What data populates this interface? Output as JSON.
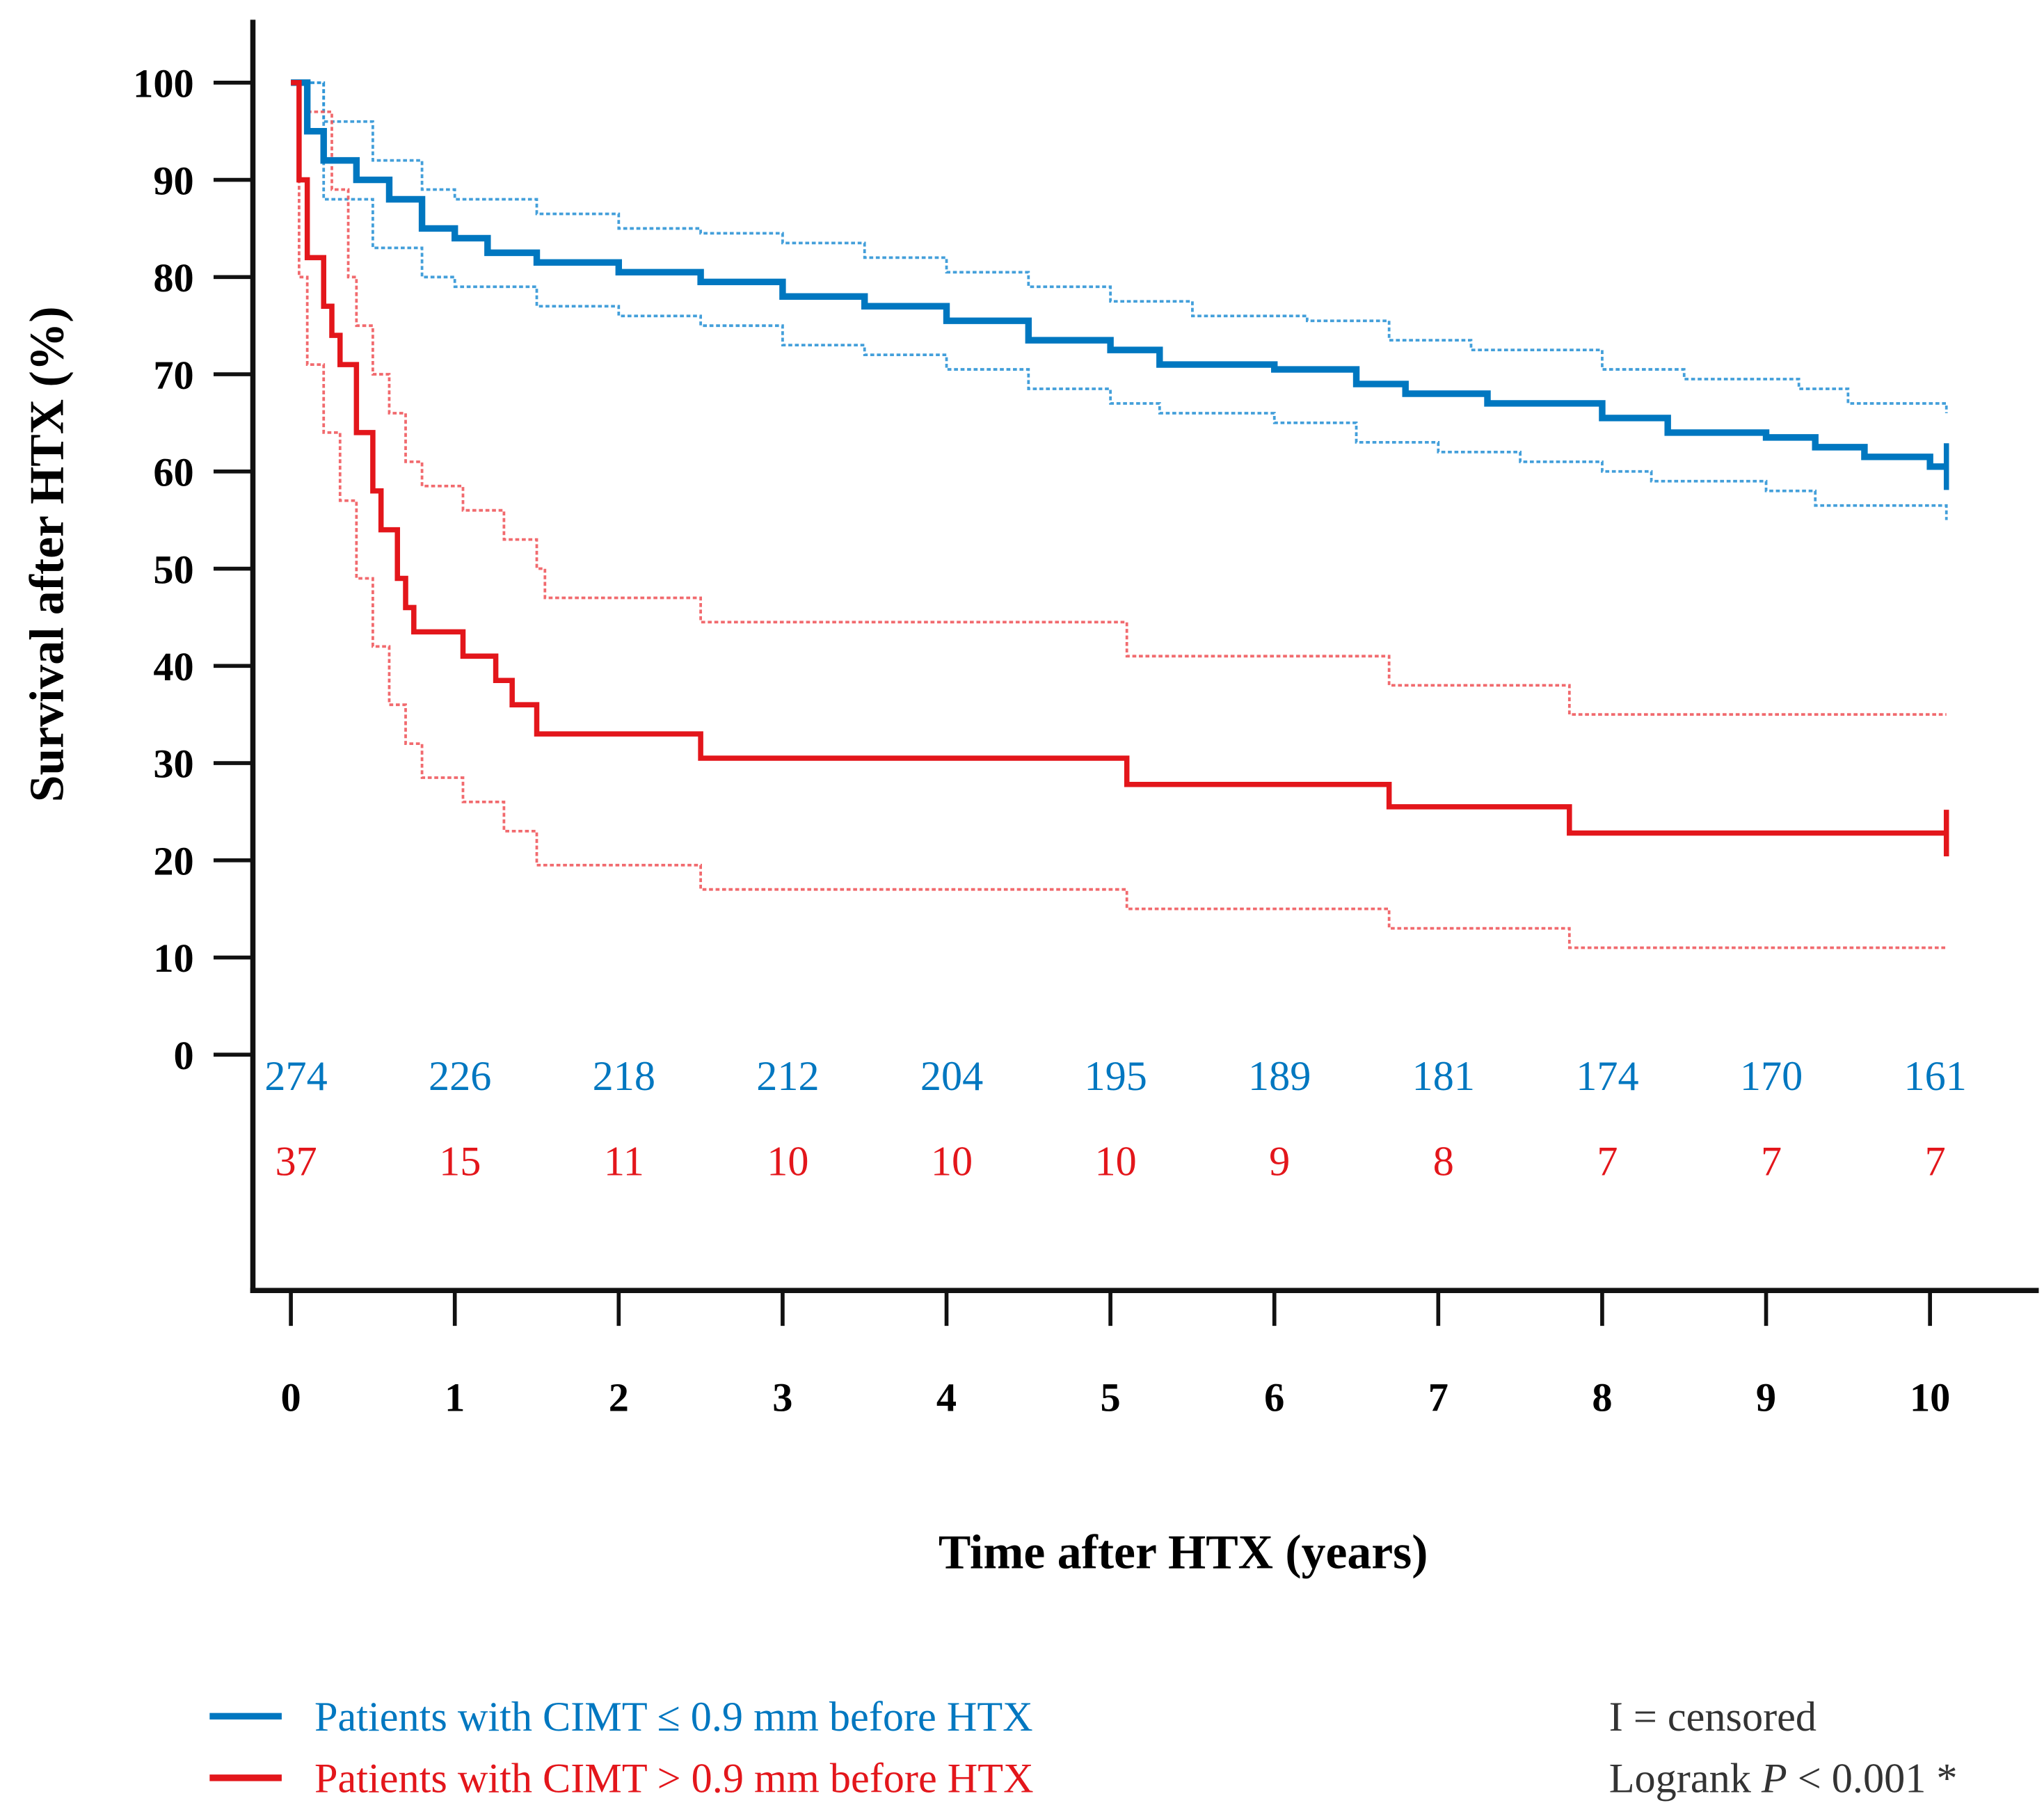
{
  "chart_data": {
    "type": "line",
    "subtype": "kaplan-meier step",
    "xlabel": "Time after HTX (years)",
    "ylabel": "Survival after HTX (%)",
    "xlim": [
      0,
      10
    ],
    "ylim": [
      0,
      100
    ],
    "x_ticks": [
      "0",
      "1",
      "2",
      "3",
      "4",
      "5",
      "6",
      "7",
      "8",
      "9",
      "10"
    ],
    "y_ticks": [
      "0",
      "10",
      "20",
      "30",
      "40",
      "50",
      "60",
      "70",
      "80",
      "90",
      "100"
    ],
    "grid": false,
    "colors": {
      "blue": "#0077c0",
      "red": "#e3161b",
      "blue_ci": "#2f95d6",
      "red_ci": "#f05a5e"
    },
    "series": [
      {
        "name": "Patients with CIMT ≤ 0.9 mm before HTX",
        "color": "blue",
        "role": "estimate",
        "points": [
          [
            0,
            100
          ],
          [
            0.1,
            95
          ],
          [
            0.2,
            92
          ],
          [
            0.4,
            90
          ],
          [
            0.6,
            88
          ],
          [
            0.8,
            85
          ],
          [
            1,
            84
          ],
          [
            1.2,
            82.5
          ],
          [
            1.5,
            81.5
          ],
          [
            2,
            80.5
          ],
          [
            2.5,
            79.5
          ],
          [
            3,
            78
          ],
          [
            3.5,
            77
          ],
          [
            4,
            75.5
          ],
          [
            4.5,
            73.5
          ],
          [
            5,
            72.5
          ],
          [
            5.3,
            71
          ],
          [
            6,
            70.5
          ],
          [
            6.5,
            69
          ],
          [
            6.8,
            68
          ],
          [
            7.3,
            67
          ],
          [
            8,
            65.5
          ],
          [
            8.4,
            64
          ],
          [
            9,
            63.5
          ],
          [
            9.3,
            62.5
          ],
          [
            9.6,
            61.5
          ],
          [
            10,
            60.5
          ],
          [
            10.1,
            60.5
          ]
        ],
        "censor_end": true
      },
      {
        "name": "CIMT ≤ 0.9 upper CI",
        "color": "blue_ci",
        "role": "ci",
        "points": [
          [
            0,
            100
          ],
          [
            0.2,
            96
          ],
          [
            0.5,
            92
          ],
          [
            0.8,
            89
          ],
          [
            1,
            88
          ],
          [
            1.5,
            86.5
          ],
          [
            2,
            85
          ],
          [
            2.5,
            84.5
          ],
          [
            3,
            83.5
          ],
          [
            3.5,
            82
          ],
          [
            4,
            80.5
          ],
          [
            4.5,
            79
          ],
          [
            5,
            77.5
          ],
          [
            5.5,
            76
          ],
          [
            6.2,
            75.5
          ],
          [
            6.7,
            73.5
          ],
          [
            7.2,
            72.5
          ],
          [
            8,
            70.5
          ],
          [
            8.5,
            69.5
          ],
          [
            9.2,
            68.5
          ],
          [
            9.5,
            67
          ],
          [
            10.1,
            66
          ]
        ]
      },
      {
        "name": "CIMT ≤ 0.9 lower CI",
        "color": "blue_ci",
        "role": "ci",
        "points": [
          [
            0,
            100
          ],
          [
            0.2,
            88
          ],
          [
            0.5,
            83
          ],
          [
            0.8,
            80
          ],
          [
            1,
            79
          ],
          [
            1.5,
            77
          ],
          [
            2,
            76
          ],
          [
            2.5,
            75
          ],
          [
            3,
            73
          ],
          [
            3.5,
            72
          ],
          [
            4,
            70.5
          ],
          [
            4.5,
            68.5
          ],
          [
            5,
            67
          ],
          [
            5.3,
            66
          ],
          [
            6,
            65
          ],
          [
            6.5,
            63
          ],
          [
            7,
            62
          ],
          [
            7.5,
            61
          ],
          [
            8,
            60
          ],
          [
            8.3,
            59
          ],
          [
            9,
            58
          ],
          [
            9.3,
            56.5
          ],
          [
            10.1,
            55
          ]
        ]
      },
      {
        "name": "Patients with CIMT > 0.9 mm before HTX",
        "color": "red",
        "role": "estimate",
        "points": [
          [
            0,
            100
          ],
          [
            0.05,
            90
          ],
          [
            0.1,
            82
          ],
          [
            0.2,
            77
          ],
          [
            0.25,
            74
          ],
          [
            0.3,
            71
          ],
          [
            0.4,
            64
          ],
          [
            0.5,
            58
          ],
          [
            0.55,
            54
          ],
          [
            0.65,
            49
          ],
          [
            0.7,
            46
          ],
          [
            0.75,
            43.5
          ],
          [
            1.05,
            41
          ],
          [
            1.25,
            38.5
          ],
          [
            1.35,
            36
          ],
          [
            1.5,
            33
          ],
          [
            2.5,
            30.5
          ],
          [
            5.1,
            27.8
          ],
          [
            6.7,
            25.5
          ],
          [
            7.8,
            22.8
          ],
          [
            10.1,
            22.8
          ]
        ],
        "censor_end": true
      },
      {
        "name": "CIMT > 0.9 upper CI",
        "color": "red_ci",
        "role": "ci",
        "points": [
          [
            0,
            100
          ],
          [
            0.1,
            97
          ],
          [
            0.25,
            89
          ],
          [
            0.35,
            80
          ],
          [
            0.4,
            75
          ],
          [
            0.5,
            70
          ],
          [
            0.6,
            66
          ],
          [
            0.7,
            61
          ],
          [
            0.8,
            58.5
          ],
          [
            1.05,
            56
          ],
          [
            1.3,
            53
          ],
          [
            1.5,
            50
          ],
          [
            1.55,
            47
          ],
          [
            2.5,
            44.5
          ],
          [
            5.1,
            41
          ],
          [
            6.7,
            38
          ],
          [
            7.8,
            35
          ],
          [
            10.1,
            35
          ]
        ]
      },
      {
        "name": "CIMT > 0.9 lower CI",
        "color": "red_ci",
        "role": "ci",
        "points": [
          [
            0,
            100
          ],
          [
            0.05,
            80
          ],
          [
            0.1,
            71
          ],
          [
            0.2,
            64
          ],
          [
            0.3,
            57
          ],
          [
            0.4,
            49
          ],
          [
            0.5,
            42
          ],
          [
            0.6,
            36
          ],
          [
            0.7,
            32
          ],
          [
            0.8,
            28.5
          ],
          [
            1.05,
            26
          ],
          [
            1.3,
            23
          ],
          [
            1.5,
            19.5
          ],
          [
            2.5,
            17
          ],
          [
            5.1,
            15
          ],
          [
            6.7,
            13
          ],
          [
            7.8,
            11
          ],
          [
            10.1,
            11
          ]
        ]
      }
    ],
    "numbers_at_risk": [
      {
        "group": "CIMT ≤ 0.9",
        "color": "blue",
        "values": [
          "274",
          "226",
          "218",
          "212",
          "204",
          "195",
          "189",
          "181",
          "174",
          "170",
          "161"
        ]
      },
      {
        "group": "CIMT > 0.9",
        "color": "red",
        "values": [
          "37",
          "15",
          "11",
          "10",
          "10",
          "10",
          "9",
          "8",
          "7",
          "7",
          "7"
        ]
      }
    ],
    "legend": {
      "placement": "bottom-left",
      "entries": [
        {
          "label": "Patients with CIMT ≤ 0.9 mm before HTX",
          "color": "blue"
        },
        {
          "label": "Patients with CIMT > 0.9 mm before HTX",
          "color": "red"
        }
      ]
    },
    "annotations": {
      "censored": "I = censored",
      "logrank_prefix": "Logrank ",
      "logrank_p": "P",
      "logrank_suffix": " < 0.001 *"
    }
  }
}
